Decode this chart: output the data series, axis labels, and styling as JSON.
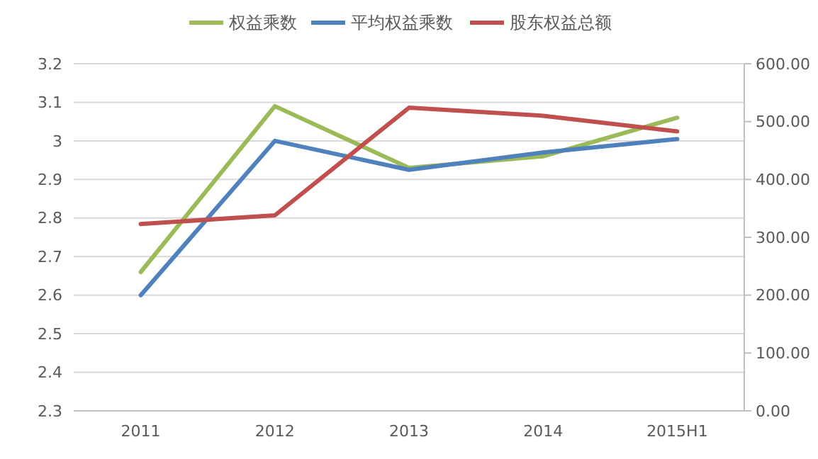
{
  "chart_data": {
    "type": "line",
    "categories": [
      "2011",
      "2012",
      "2013",
      "2014",
      "2015H1"
    ],
    "series": [
      {
        "name": "权益乘数",
        "color": "#9bbb59",
        "values": [
          2.66,
          3.09,
          2.93,
          2.96,
          3.06
        ]
      },
      {
        "name": "平均权益乘数",
        "color": "#4f81bd",
        "values": [
          2.6,
          3.0,
          2.925,
          2.97,
          3.005
        ]
      },
      {
        "name": "股东权益总额",
        "color": "#c0504d",
        "values": [
          323,
          338,
          524,
          510,
          483
        ],
        "axis": "y2"
      }
    ],
    "ylim": [
      2.3,
      3.2
    ],
    "yticks": [
      2.3,
      2.4,
      2.5,
      2.6,
      2.7,
      2.8,
      2.9,
      3,
      3.1,
      3.2
    ],
    "y2lim": [
      0,
      600
    ],
    "y2ticks": [
      {
        "value": 0,
        "label": "0.00"
      },
      {
        "value": 100,
        "label": "100.00"
      },
      {
        "value": 200,
        "label": "200.00"
      },
      {
        "value": 300,
        "label": "300.00"
      },
      {
        "value": 400,
        "label": "400.00"
      },
      {
        "value": 500,
        "label": "500.00"
      },
      {
        "value": 600,
        "label": "600.00"
      }
    ],
    "grid": "y",
    "legend": "top",
    "marker": "none",
    "line_style": "solid"
  }
}
